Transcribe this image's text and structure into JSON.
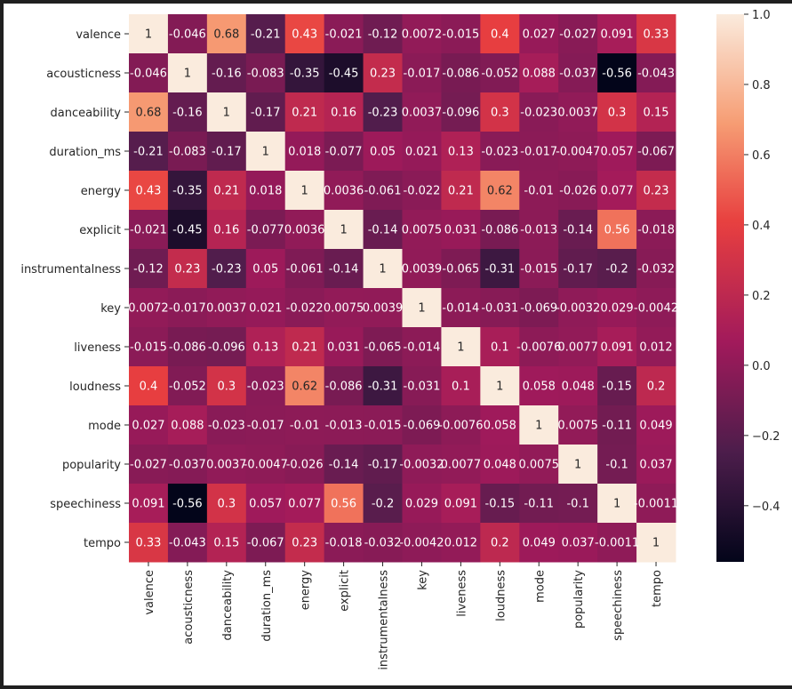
{
  "chart_data": {
    "type": "heatmap",
    "title": "",
    "xlabel": "",
    "ylabel": "",
    "labels": [
      "valence",
      "acousticness",
      "danceability",
      "duration_ms",
      "energy",
      "explicit",
      "instrumentalness",
      "key",
      "liveness",
      "loudness",
      "mode",
      "popularity",
      "speechiness",
      "tempo"
    ],
    "matrix": [
      [
        1,
        -0.046,
        0.68,
        -0.21,
        0.43,
        -0.021,
        -0.12,
        0.0072,
        -0.015,
        0.4,
        0.027,
        -0.027,
        0.091,
        0.33
      ],
      [
        -0.046,
        1,
        -0.16,
        -0.083,
        -0.35,
        -0.45,
        0.23,
        -0.017,
        -0.086,
        -0.052,
        0.088,
        -0.037,
        -0.56,
        -0.043
      ],
      [
        0.68,
        -0.16,
        1,
        -0.17,
        0.21,
        0.16,
        -0.23,
        0.0037,
        -0.096,
        0.3,
        -0.023,
        0.0037,
        0.3,
        0.15
      ],
      [
        -0.21,
        -0.083,
        -0.17,
        1,
        0.018,
        -0.077,
        0.05,
        0.021,
        0.13,
        -0.023,
        -0.017,
        -0.0047,
        0.057,
        -0.067
      ],
      [
        0.43,
        -0.35,
        0.21,
        0.018,
        1,
        0.0036,
        -0.061,
        -0.022,
        0.21,
        0.62,
        -0.01,
        -0.026,
        0.077,
        0.23
      ],
      [
        -0.021,
        -0.45,
        0.16,
        -0.077,
        0.0036,
        1,
        -0.14,
        0.0075,
        0.031,
        -0.086,
        -0.013,
        -0.14,
        0.56,
        -0.018
      ],
      [
        -0.12,
        0.23,
        -0.23,
        0.05,
        -0.061,
        -0.14,
        1,
        0.0039,
        -0.065,
        -0.31,
        -0.015,
        -0.17,
        -0.2,
        -0.032
      ],
      [
        0.0072,
        -0.017,
        0.0037,
        0.021,
        -0.022,
        0.0075,
        0.0039,
        1,
        -0.014,
        -0.031,
        -0.069,
        -0.0032,
        0.029,
        -0.0042
      ],
      [
        -0.015,
        -0.086,
        -0.096,
        0.13,
        0.21,
        0.031,
        -0.065,
        -0.014,
        1,
        0.1,
        -0.0076,
        0.0077,
        0.091,
        0.012
      ],
      [
        0.4,
        -0.052,
        0.3,
        -0.023,
        0.62,
        -0.086,
        -0.31,
        -0.031,
        0.1,
        1,
        0.058,
        0.048,
        -0.15,
        0.2
      ],
      [
        0.027,
        0.088,
        -0.023,
        -0.017,
        -0.01,
        -0.013,
        -0.015,
        -0.069,
        -0.0076,
        0.058,
        1,
        0.0075,
        -0.11,
        0.049
      ],
      [
        -0.027,
        -0.037,
        0.0037,
        -0.0047,
        -0.026,
        -0.14,
        -0.17,
        -0.0032,
        0.0077,
        0.048,
        0.0075,
        1,
        -0.1,
        0.037
      ],
      [
        0.091,
        -0.56,
        0.3,
        0.057,
        0.077,
        0.56,
        -0.2,
        0.029,
        0.091,
        -0.15,
        -0.11,
        -0.1,
        1,
        -0.0011
      ],
      [
        0.33,
        -0.043,
        0.15,
        -0.067,
        0.23,
        -0.018,
        -0.032,
        -0.0042,
        0.012,
        0.2,
        0.049,
        0.037,
        -0.0011,
        1
      ]
    ],
    "annotations": true,
    "colormap": "rocket",
    "colormap_stops": [
      "#03051a",
      "#4c1d4b",
      "#a11a5b",
      "#e83f3f",
      "#f69c73",
      "#faebdd"
    ],
    "vmin": -0.56,
    "vmax": 1.0,
    "colorbar": {
      "placement": "right",
      "ticks": [
        1.0,
        0.8,
        0.6,
        0.4,
        0.2,
        0.0,
        -0.2,
        -0.4
      ],
      "tick_labels": [
        "1.0",
        "0.8",
        "0.6",
        "0.4",
        "0.2",
        "0.0",
        "−0.2",
        "−0.4"
      ]
    }
  }
}
